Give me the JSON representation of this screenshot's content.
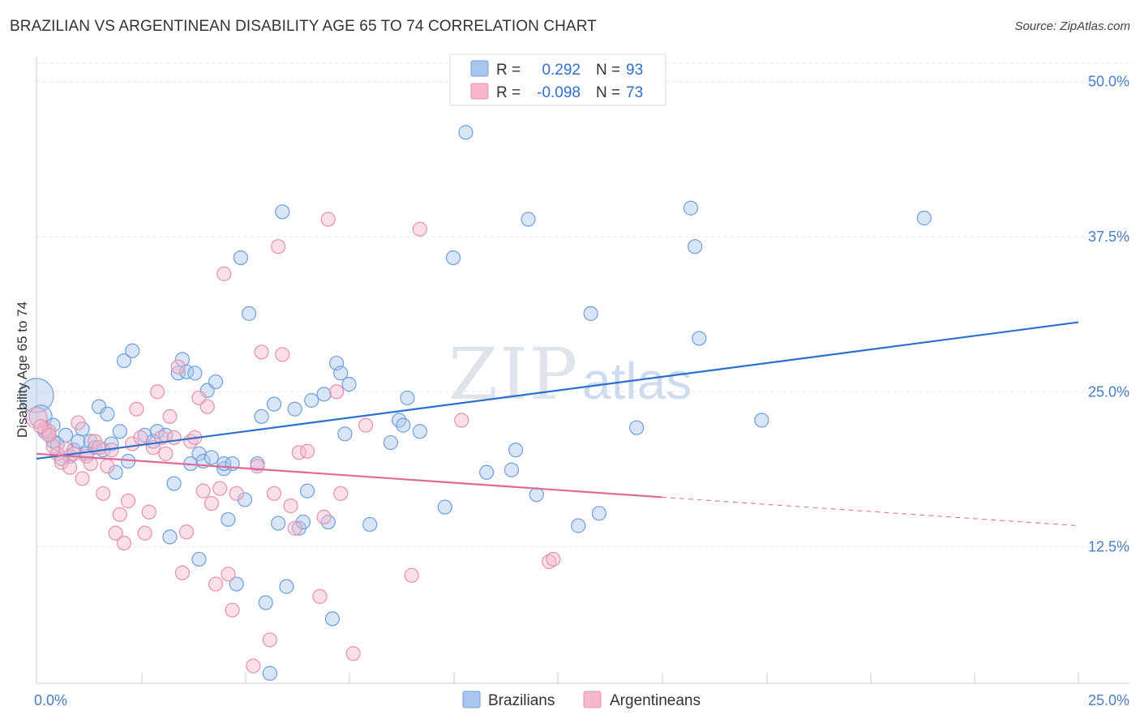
{
  "title": "BRAZILIAN VS ARGENTINEAN DISABILITY AGE 65 TO 74 CORRELATION CHART",
  "source": "Source: ZipAtlas.com",
  "watermark": {
    "zip": "ZIP",
    "atlas": "atlas"
  },
  "colors": {
    "blue_fill": "#a9c6ee",
    "blue_stroke": "#6f9ede",
    "blue_line": "#2b6fd0",
    "pink_fill": "#f6b9cc",
    "pink_stroke": "#e890ab",
    "pink_line": "#e06a94",
    "grid": "#e6e6e6",
    "tick_label": "#4a7cc7"
  },
  "legend": {
    "r_label": "R =",
    "n_label": "N =",
    "entries": [
      {
        "name": "Brazilians",
        "r": "0.292",
        "n": "93"
      },
      {
        "name": "Argentineans",
        "r": "-0.098",
        "n": "73"
      }
    ]
  },
  "chart_data": {
    "type": "scatter",
    "title": "BRAZILIAN VS ARGENTINEAN DISABILITY AGE 65 TO 74 CORRELATION CHART",
    "xlabel": "",
    "ylabel": "Disability Age 65 to 74",
    "xlim": [
      0,
      25
    ],
    "ylim": [
      1.5,
      52
    ],
    "x_tick_labels": [
      "0.0%",
      "25.0%"
    ],
    "y_ticks": [
      12.5,
      25.0,
      37.5,
      50.0
    ],
    "y_tick_labels": [
      "12.5%",
      "25.0%",
      "37.5%",
      "50.0%"
    ],
    "grid": true,
    "legend_position": "top-center",
    "series": [
      {
        "name": "Brazilians",
        "r": 0.292,
        "n": 93,
        "trend": {
          "x": [
            0,
            25
          ],
          "y": [
            19.6,
            30.6
          ]
        },
        "points": [
          [
            0.0,
            24.7
          ],
          [
            0.1,
            23.0
          ],
          [
            0.2,
            21.8
          ],
          [
            0.3,
            21.5
          ],
          [
            0.4,
            21.0
          ],
          [
            0.5,
            20.8
          ],
          [
            0.6,
            19.6
          ],
          [
            0.7,
            21.5
          ],
          [
            0.8,
            19.8
          ],
          [
            0.9,
            20.3
          ],
          [
            1.0,
            21.0
          ],
          [
            1.1,
            22.0
          ],
          [
            1.2,
            20.0
          ],
          [
            1.3,
            21.0
          ],
          [
            1.4,
            20.5
          ],
          [
            1.5,
            23.8
          ],
          [
            1.6,
            20.3
          ],
          [
            1.7,
            23.2
          ],
          [
            1.8,
            20.8
          ],
          [
            1.9,
            18.5
          ],
          [
            2.0,
            21.8
          ],
          [
            2.1,
            27.5
          ],
          [
            2.2,
            19.4
          ],
          [
            2.3,
            28.3
          ],
          [
            2.6,
            21.5
          ],
          [
            2.8,
            21.0
          ],
          [
            2.9,
            21.8
          ],
          [
            3.1,
            21.5
          ],
          [
            3.2,
            13.3
          ],
          [
            3.3,
            17.6
          ],
          [
            3.4,
            26.5
          ],
          [
            3.5,
            27.6
          ],
          [
            3.6,
            26.6
          ],
          [
            3.7,
            19.2
          ],
          [
            3.8,
            26.5
          ],
          [
            3.9,
            11.5
          ],
          [
            3.9,
            20.0
          ],
          [
            4.0,
            19.4
          ],
          [
            4.1,
            25.1
          ],
          [
            4.2,
            19.7
          ],
          [
            4.3,
            25.8
          ],
          [
            4.5,
            18.8
          ],
          [
            4.5,
            19.2
          ],
          [
            4.6,
            14.7
          ],
          [
            4.7,
            19.2
          ],
          [
            4.8,
            9.5
          ],
          [
            4.9,
            35.8
          ],
          [
            5.0,
            16.3
          ],
          [
            5.1,
            31.3
          ],
          [
            5.3,
            19.2
          ],
          [
            5.4,
            23.0
          ],
          [
            5.5,
            8.0
          ],
          [
            5.6,
            2.3
          ],
          [
            5.7,
            24.0
          ],
          [
            5.8,
            14.4
          ],
          [
            5.9,
            39.5
          ],
          [
            6.0,
            9.3
          ],
          [
            6.2,
            23.6
          ],
          [
            6.3,
            14.0
          ],
          [
            6.4,
            14.5
          ],
          [
            6.5,
            17.0
          ],
          [
            6.6,
            24.3
          ],
          [
            6.9,
            24.8
          ],
          [
            7.0,
            14.5
          ],
          [
            7.1,
            6.7
          ],
          [
            7.2,
            27.3
          ],
          [
            7.3,
            26.5
          ],
          [
            7.4,
            21.6
          ],
          [
            7.5,
            25.6
          ],
          [
            8.0,
            14.3
          ],
          [
            8.5,
            20.9
          ],
          [
            8.7,
            22.7
          ],
          [
            8.8,
            22.3
          ],
          [
            8.9,
            24.5
          ],
          [
            9.2,
            21.8
          ],
          [
            9.8,
            15.7
          ],
          [
            10.0,
            35.8
          ],
          [
            10.3,
            45.9
          ],
          [
            10.8,
            18.5
          ],
          [
            11.4,
            18.7
          ],
          [
            11.5,
            20.3
          ],
          [
            11.8,
            38.9
          ],
          [
            12.0,
            16.7
          ],
          [
            13.0,
            14.2
          ],
          [
            13.3,
            31.3
          ],
          [
            13.5,
            15.2
          ],
          [
            14.4,
            22.1
          ],
          [
            15.7,
            39.8
          ],
          [
            15.8,
            36.7
          ],
          [
            15.9,
            29.3
          ],
          [
            17.4,
            22.7
          ],
          [
            21.3,
            39.0
          ],
          [
            0.4,
            22.3
          ]
        ]
      },
      {
        "name": "Argentineans",
        "r": -0.098,
        "n": 73,
        "trend": {
          "x": [
            0,
            15
          ],
          "y": [
            20.0,
            16.5
          ]
        },
        "trend_dashed": {
          "x": [
            15,
            25
          ],
          "y": [
            16.5,
            14.2
          ]
        },
        "points": [
          [
            0.0,
            22.9
          ],
          [
            0.2,
            22.0
          ],
          [
            0.3,
            21.8
          ],
          [
            0.4,
            20.6
          ],
          [
            0.5,
            20.0
          ],
          [
            0.6,
            19.3
          ],
          [
            0.7,
            20.4
          ],
          [
            0.8,
            18.9
          ],
          [
            0.9,
            20.0
          ],
          [
            1.0,
            22.5
          ],
          [
            1.1,
            18.0
          ],
          [
            1.2,
            19.8
          ],
          [
            1.3,
            19.2
          ],
          [
            1.4,
            21.0
          ],
          [
            1.5,
            20.5
          ],
          [
            1.6,
            16.8
          ],
          [
            1.7,
            19.0
          ],
          [
            1.8,
            20.3
          ],
          [
            1.9,
            13.6
          ],
          [
            2.0,
            15.1
          ],
          [
            2.1,
            12.8
          ],
          [
            2.2,
            16.2
          ],
          [
            2.3,
            20.8
          ],
          [
            2.4,
            23.6
          ],
          [
            2.5,
            21.3
          ],
          [
            2.6,
            13.6
          ],
          [
            2.7,
            15.3
          ],
          [
            2.8,
            20.5
          ],
          [
            2.9,
            25.0
          ],
          [
            3.0,
            21.3
          ],
          [
            3.1,
            20.0
          ],
          [
            3.2,
            23.0
          ],
          [
            3.3,
            21.3
          ],
          [
            3.4,
            27.0
          ],
          [
            3.5,
            10.4
          ],
          [
            3.6,
            13.7
          ],
          [
            3.7,
            21.0
          ],
          [
            3.8,
            21.3
          ],
          [
            3.9,
            24.5
          ],
          [
            4.0,
            17.0
          ],
          [
            4.1,
            23.8
          ],
          [
            4.2,
            16.0
          ],
          [
            4.3,
            9.5
          ],
          [
            4.4,
            17.2
          ],
          [
            4.5,
            34.5
          ],
          [
            4.6,
            10.3
          ],
          [
            4.7,
            7.4
          ],
          [
            4.8,
            16.8
          ],
          [
            5.2,
            2.9
          ],
          [
            5.3,
            19.0
          ],
          [
            5.4,
            28.2
          ],
          [
            5.6,
            5.0
          ],
          [
            5.7,
            16.8
          ],
          [
            5.8,
            36.7
          ],
          [
            5.9,
            28.0
          ],
          [
            6.1,
            15.8
          ],
          [
            6.2,
            14.0
          ],
          [
            6.3,
            20.1
          ],
          [
            6.5,
            20.2
          ],
          [
            6.8,
            8.5
          ],
          [
            6.9,
            14.9
          ],
          [
            7.0,
            38.9
          ],
          [
            7.2,
            25.0
          ],
          [
            7.3,
            16.8
          ],
          [
            7.6,
            3.9
          ],
          [
            7.9,
            22.3
          ],
          [
            9.0,
            10.2
          ],
          [
            9.2,
            38.1
          ],
          [
            10.2,
            22.7
          ],
          [
            12.3,
            11.3
          ],
          [
            12.4,
            11.5
          ],
          [
            0.1,
            22.2
          ],
          [
            0.3,
            21.5
          ]
        ]
      }
    ]
  }
}
